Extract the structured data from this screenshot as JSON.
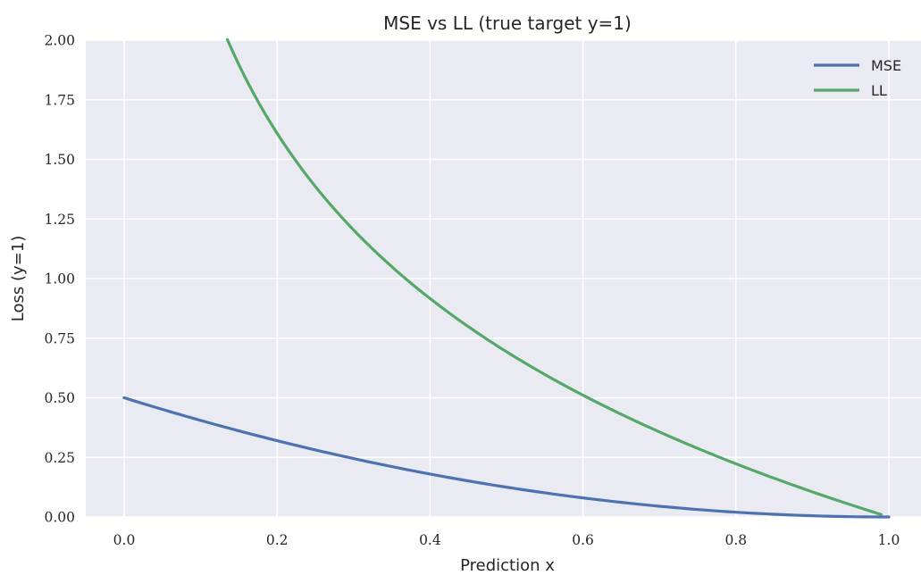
{
  "chart_data": {
    "type": "line",
    "title": "MSE vs LL (true target y=1)",
    "xlabel": "Prediction x",
    "ylabel": "Loss (y=1)",
    "xlim": [
      -0.05,
      1.02
    ],
    "ylim": [
      0,
      2
    ],
    "xticks": [
      "0.0",
      "0.2",
      "0.4",
      "0.6",
      "0.8",
      "1.0"
    ],
    "yticks": [
      "0.00",
      "0.25",
      "0.50",
      "0.75",
      "1.00",
      "1.25",
      "1.50",
      "1.75",
      "2.00"
    ],
    "grid": true,
    "legend_position": "top-right",
    "background": "#eaeaf2",
    "series": [
      {
        "name": "MSE",
        "color": "#4c72b0",
        "x": [
          0.0,
          0.1,
          0.2,
          0.3,
          0.4,
          0.5,
          0.6,
          0.7,
          0.8,
          0.9,
          1.0
        ],
        "y": [
          0.5,
          0.405,
          0.32,
          0.245,
          0.18,
          0.125,
          0.08,
          0.045,
          0.02,
          0.005,
          0.0
        ]
      },
      {
        "name": "LL",
        "color": "#55a868",
        "x": [
          0.135,
          0.15,
          0.2,
          0.25,
          0.3,
          0.35,
          0.4,
          0.45,
          0.5,
          0.55,
          0.6,
          0.65,
          0.7,
          0.75,
          0.8,
          0.85,
          0.9,
          0.95,
          0.99
        ],
        "y": [
          2.0,
          1.897,
          1.609,
          1.386,
          1.204,
          1.05,
          0.916,
          0.799,
          0.693,
          0.598,
          0.511,
          0.431,
          0.357,
          0.288,
          0.223,
          0.163,
          0.105,
          0.051,
          0.01
        ]
      }
    ]
  }
}
